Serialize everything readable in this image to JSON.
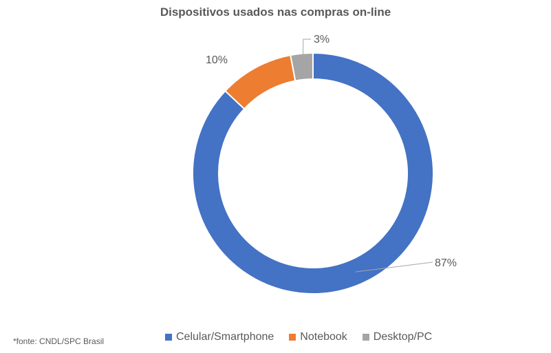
{
  "chart_data": {
    "type": "pie",
    "variant": "donut",
    "title": "Dispositivos usados nas compras on-line",
    "categories": [
      "Celular/Smartphone",
      "Notebook",
      "Desktop/PC"
    ],
    "values": [
      87,
      10,
      3
    ],
    "data_labels": [
      "87%",
      "10%",
      "3%"
    ],
    "colors": [
      "#4472C4",
      "#ED7D31",
      "#A5A5A5"
    ],
    "legend_position": "bottom",
    "source_note": "*fonte: CNDL/SPC Brasil"
  }
}
